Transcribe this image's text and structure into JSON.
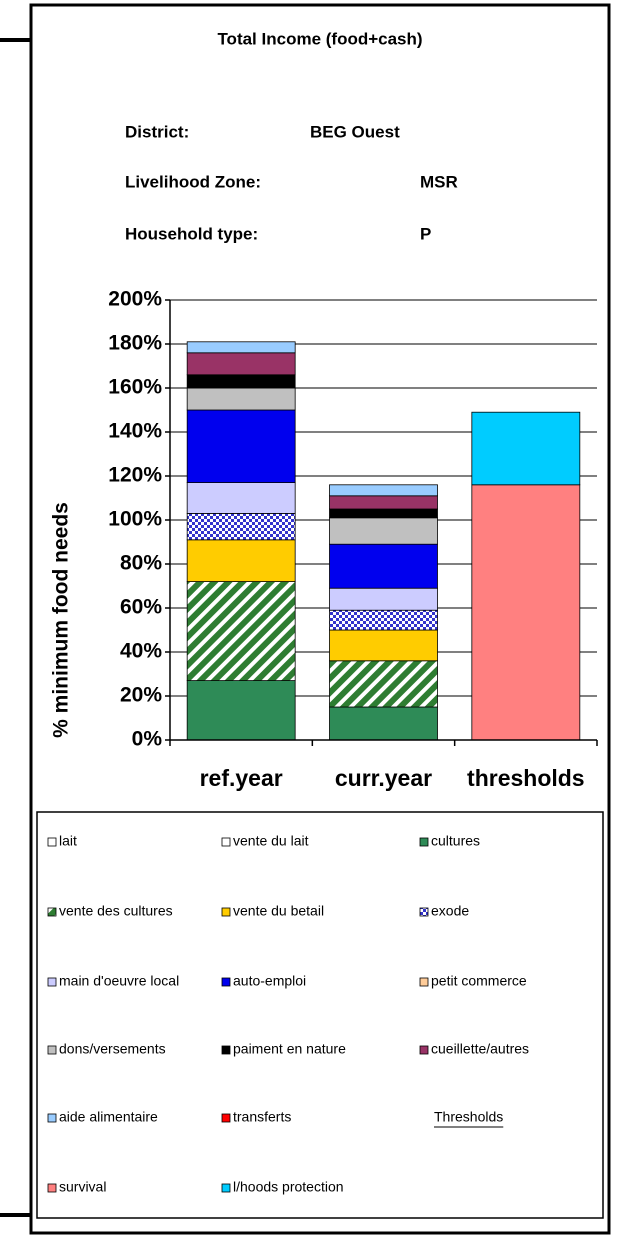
{
  "chart_data": {
    "type": "stacked_bar",
    "title": "Total Income (food+cash)",
    "info": [
      {
        "label": "District:",
        "value": "BEG Ouest"
      },
      {
        "label": "Livelihood Zone:",
        "value": "MSR"
      },
      {
        "label": "Household type:",
        "value": "P"
      }
    ],
    "y_label": "% minimum food needs",
    "categories": [
      "ref.year",
      "curr.year",
      "thresholds"
    ],
    "ylim": [
      0,
      200
    ],
    "yticks": [
      {
        "value": 0,
        "label": "0%"
      },
      {
        "value": 20,
        "label": "20%"
      },
      {
        "value": 40,
        "label": "40%"
      },
      {
        "value": 60,
        "label": "60%"
      },
      {
        "value": 80,
        "label": "80%"
      },
      {
        "value": 100,
        "label": "100%"
      },
      {
        "value": 120,
        "label": "120%"
      },
      {
        "value": 140,
        "label": "140%"
      },
      {
        "value": 160,
        "label": "160%"
      },
      {
        "value": 180,
        "label": "180%"
      },
      {
        "value": 200,
        "label": "200%"
      }
    ],
    "grid": true,
    "series": [
      {
        "name": "lait",
        "color": "#ffffff",
        "values": [
          0,
          0,
          null
        ]
      },
      {
        "name": "vente du lait",
        "color": "#ffffff",
        "values": [
          0,
          0,
          null
        ]
      },
      {
        "name": "cultures",
        "color": "#2e8b57",
        "values": [
          27,
          15,
          null
        ]
      },
      {
        "name": "vente des cultures",
        "color": "#2e7d32",
        "pattern": "diagonal",
        "values": [
          45,
          21,
          null
        ]
      },
      {
        "name": "vente du betail",
        "color": "#ffcc00",
        "values": [
          19,
          14,
          null
        ]
      },
      {
        "name": "exode",
        "color": "#3333cc",
        "pattern": "checker",
        "values": [
          12,
          9,
          null
        ]
      },
      {
        "name": "main d'oeuvre local",
        "color": "#ccccff",
        "values": [
          14,
          10,
          null
        ]
      },
      {
        "name": "auto-emploi",
        "color": "#0000ee",
        "values": [
          33,
          20,
          null
        ]
      },
      {
        "name": "petit commerce",
        "color": "#ffcc99",
        "values": [
          0,
          0,
          null
        ]
      },
      {
        "name": "dons/versements",
        "color": "#c0c0c0",
        "values": [
          10,
          12,
          null
        ]
      },
      {
        "name": "paiment en nature",
        "color": "#000000",
        "values": [
          6,
          4,
          null
        ]
      },
      {
        "name": "cueillette/autres",
        "color": "#993366",
        "values": [
          10,
          6,
          null
        ]
      },
      {
        "name": "aide alimentaire",
        "color": "#99ccff",
        "values": [
          5,
          5,
          null
        ]
      },
      {
        "name": "transferts",
        "color": "#ff0000",
        "values": [
          0,
          0,
          null
        ]
      },
      {
        "name": "survival",
        "color": "#ff8080",
        "values": [
          null,
          null,
          116
        ]
      },
      {
        "name": "l/hoods protection",
        "color": "#00ccff",
        "values": [
          null,
          null,
          33
        ]
      }
    ],
    "threshold_legend_title": "Thresholds"
  }
}
